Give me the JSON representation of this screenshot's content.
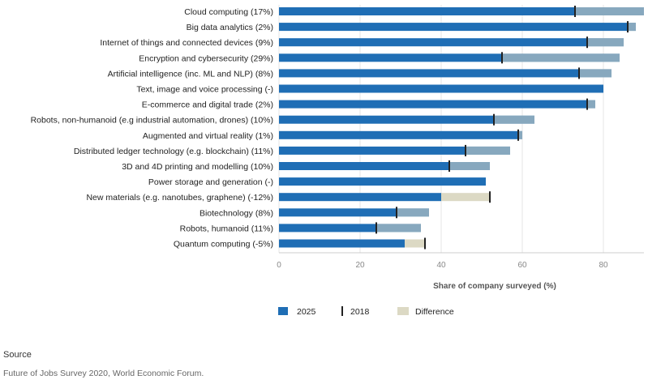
{
  "chart_data": {
    "type": "bar",
    "categories": [
      "Cloud computing (17%)",
      "Big data analytics (2%)",
      "Internet of things and connected devices (9%)",
      "Encryption and cybersecurity (29%)",
      "Artificial intelligence (inc. ML and NLP) (8%)",
      "Text, image and voice processing (-)",
      "E-commerce and digital trade (2%)",
      "Robots, non-humanoid (e.g industrial automation, drones) (10%)",
      "Augmented and virtual reality (1%)",
      "Distributed ledger technology (e.g. blockchain) (11%)",
      "3D and 4D printing and modelling (10%)",
      "Power storage and generation (-)",
      "New materials (e.g. nanotubes, graphene) (-12%)",
      "Biotechnology (8%)",
      "Robots, humanoid (11%)",
      "Quantum computing (-5%)"
    ],
    "series": [
      {
        "name": "2025",
        "values": [
          90,
          88,
          85,
          84,
          82,
          80,
          78,
          63,
          60,
          57,
          52,
          51,
          40,
          37,
          35,
          31
        ],
        "color": "#1f6eb5"
      },
      {
        "name": "2018",
        "values": [
          73,
          86,
          76,
          55,
          74,
          null,
          76,
          53,
          59,
          46,
          42,
          null,
          52,
          29,
          24,
          36
        ],
        "color": "#222222"
      }
    ],
    "difference_color": "#dcd9c4",
    "xlabel": "Share of company surveyed (%)",
    "xlim": [
      0,
      90
    ],
    "xticks": [
      0,
      20,
      40,
      60,
      80
    ],
    "legend": [
      "2025",
      "2018",
      "Difference"
    ],
    "legend_position": "bottom",
    "grid": true
  },
  "source_label": "Source",
  "source_text": "Future of Jobs Survey 2020, World Economic Forum."
}
